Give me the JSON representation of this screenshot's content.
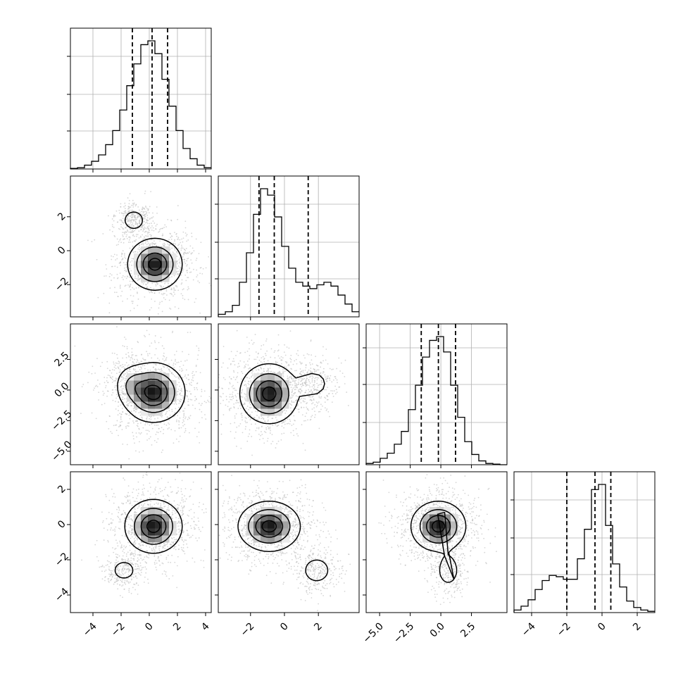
{
  "chart_data": {
    "type": "corner",
    "description_note": "",
    "n_params": 4,
    "grid": true,
    "colors": {
      "line": "#000000",
      "grid": "#b0b0b0",
      "scatter": "#bbbbbb",
      "frame": "#000000"
    },
    "diagonal": [
      {
        "param": 0,
        "xlim": [
          -5.6,
          4.4
        ],
        "hist_edges_start": -5.6,
        "hist_bin_width": 0.5,
        "hist_counts": [
          0.005,
          0.01,
          0.03,
          0.06,
          0.11,
          0.19,
          0.3,
          0.46,
          0.65,
          0.82,
          0.97,
          1.0,
          0.9,
          0.7,
          0.49,
          0.3,
          0.16,
          0.08,
          0.03,
          0.01
        ],
        "quantiles": [
          -1.2,
          0.2,
          1.3
        ],
        "ytick_fracs": [
          0.27,
          0.53,
          0.8
        ]
      },
      {
        "param": 1,
        "xlim": [
          -3.9,
          4.4
        ],
        "hist_edges_start": -3.9,
        "hist_bin_width": 0.415,
        "hist_counts": [
          0.02,
          0.04,
          0.09,
          0.27,
          0.5,
          0.8,
          1.0,
          0.95,
          0.78,
          0.55,
          0.38,
          0.27,
          0.24,
          0.22,
          0.25,
          0.27,
          0.24,
          0.17,
          0.1,
          0.04
        ],
        "quantiles": [
          -1.5,
          -0.6,
          1.4
        ],
        "ytick_fracs": [
          0.27,
          0.53,
          0.8
        ]
      },
      {
        "param": 2,
        "xlim": [
          -6.1,
          5.4
        ],
        "hist_edges_start": -6.1,
        "hist_bin_width": 0.575,
        "hist_counts": [
          0.01,
          0.02,
          0.05,
          0.09,
          0.16,
          0.26,
          0.43,
          0.62,
          0.84,
          0.97,
          1.0,
          0.88,
          0.62,
          0.37,
          0.18,
          0.08,
          0.03,
          0.01,
          0.005,
          0.0
        ],
        "quantiles": [
          -1.6,
          -0.2,
          1.2
        ],
        "ytick_fracs": [
          0.3,
          0.57,
          0.83
        ]
      },
      {
        "param": 3,
        "xlim": [
          -5.0,
          3.0
        ],
        "hist_edges_start": -5.0,
        "hist_bin_width": 0.4,
        "hist_counts": [
          0.02,
          0.05,
          0.1,
          0.18,
          0.25,
          0.29,
          0.28,
          0.26,
          0.26,
          0.42,
          0.65,
          0.96,
          1.0,
          0.68,
          0.38,
          0.2,
          0.09,
          0.04,
          0.02,
          0.01
        ],
        "quantiles": [
          -2.0,
          -0.4,
          0.5
        ],
        "ytick_fracs": [
          0.27,
          0.53,
          0.8
        ]
      }
    ],
    "panels": [
      {
        "row": 1,
        "col": 0,
        "xlim": [
          -5.6,
          4.4
        ],
        "ylim": [
          -3.9,
          4.4
        ],
        "peaks": [
          {
            "x": 0.4,
            "y": -0.8,
            "sx": 0.95,
            "sy": 0.75,
            "w": 1.0
          },
          {
            "x": -1.1,
            "y": 1.8,
            "sx": 0.45,
            "sy": 0.35,
            "w": 0.32
          }
        ]
      },
      {
        "row": 2,
        "col": 0,
        "xlim": [
          -5.6,
          4.4
        ],
        "ylim": [
          -6.1,
          5.4
        ],
        "peaks": [
          {
            "x": 0.3,
            "y": -0.2,
            "sx": 1.1,
            "sy": 1.2,
            "w": 1.0
          },
          {
            "x": -1.3,
            "y": 0.5,
            "sx": 0.6,
            "sy": 0.8,
            "w": 0.25
          }
        ]
      },
      {
        "row": 2,
        "col": 1,
        "xlim": [
          -3.9,
          4.4
        ],
        "ylim": [
          -6.1,
          5.4
        ],
        "peaks": [
          {
            "x": -0.9,
            "y": -0.3,
            "sx": 0.85,
            "sy": 1.2,
            "w": 1.0
          },
          {
            "x": 1.7,
            "y": 0.5,
            "sx": 0.5,
            "sy": 0.65,
            "w": 0.3
          }
        ]
      },
      {
        "row": 3,
        "col": 0,
        "xlim": [
          -5.6,
          4.4
        ],
        "ylim": [
          -5.0,
          3.0
        ],
        "peaks": [
          {
            "x": 0.3,
            "y": -0.1,
            "sx": 1.0,
            "sy": 0.75,
            "w": 1.0
          },
          {
            "x": -1.8,
            "y": -2.6,
            "sx": 0.5,
            "sy": 0.35,
            "w": 0.28
          }
        ]
      },
      {
        "row": 3,
        "col": 1,
        "xlim": [
          -3.9,
          4.4
        ],
        "ylim": [
          -5.0,
          3.0
        ],
        "peaks": [
          {
            "x": -0.9,
            "y": -0.1,
            "sx": 0.9,
            "sy": 0.7,
            "w": 1.0
          },
          {
            "x": 1.9,
            "y": -2.6,
            "sx": 0.5,
            "sy": 0.45,
            "w": 0.3
          }
        ]
      },
      {
        "row": 3,
        "col": 2,
        "xlim": [
          -6.1,
          5.4
        ],
        "ylim": [
          -5.0,
          3.0
        ],
        "peaks": [
          {
            "x": -0.2,
            "y": -0.1,
            "sx": 1.1,
            "sy": 0.7,
            "w": 1.0
          },
          {
            "x": 0.6,
            "y": -2.6,
            "sx": 0.55,
            "sy": 0.55,
            "w": 0.28
          }
        ]
      }
    ],
    "x_ticks": [
      {
        "col": 0,
        "values": [
          -4,
          -2,
          0,
          2,
          4
        ],
        "labels": [
          "−4",
          "−2",
          "0",
          "2",
          "4"
        ]
      },
      {
        "col": 1,
        "values": [
          -2,
          0,
          2
        ],
        "labels": [
          "−2",
          "0",
          "2"
        ]
      },
      {
        "col": 2,
        "values": [
          -5.0,
          -2.5,
          0.0,
          2.5
        ],
        "labels": [
          "−5.0",
          "−2.5",
          "0.0",
          "2.5"
        ]
      },
      {
        "col": 3,
        "values": [
          -4,
          -2,
          0,
          2
        ],
        "labels": [
          "−4",
          "−2",
          "0",
          "2"
        ]
      }
    ],
    "y_ticks": [
      {
        "row": 1,
        "values": [
          2,
          0,
          -2
        ],
        "labels": [
          "2",
          "0",
          "−2"
        ]
      },
      {
        "row": 2,
        "values": [
          2.5,
          0.0,
          -2.5,
          -5.0
        ],
        "labels": [
          "2.5",
          "0.0",
          "−2.5",
          "−5.0"
        ]
      },
      {
        "row": 3,
        "values": [
          2,
          0,
          -2,
          -4
        ],
        "labels": [
          "2",
          "0",
          "−2",
          "−4"
        ]
      }
    ]
  }
}
